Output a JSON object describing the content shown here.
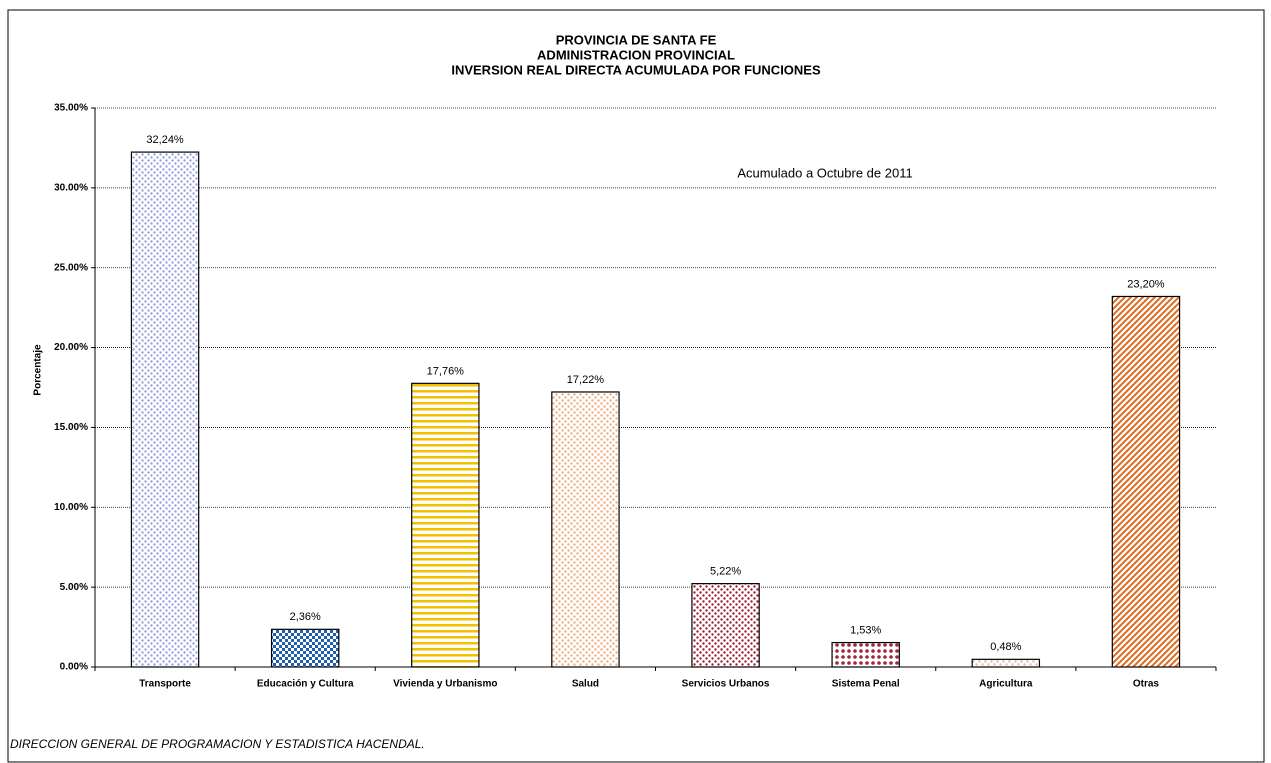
{
  "chart_data": {
    "type": "bar",
    "title": [
      "PROVINCIA DE SANTA FE",
      "ADMINISTRACION PROVINCIAL",
      "INVERSION REAL DIRECTA ACUMULADA POR FUNCIONES"
    ],
    "y_label": "Porcentaje",
    "annotation": "Acumulado a Octubre de 2011",
    "footer": "DIRECCION GENERAL DE PROGRAMACION Y ESTADISTICA HACENDAL.",
    "categories": [
      "Transporte",
      "Educación y Cultura",
      "Vivienda y Urbanismo",
      "Salud",
      "Servicios Urbanos",
      "Sistema Penal",
      "Agricultura",
      "Otras"
    ],
    "values": [
      32.24,
      2.36,
      17.76,
      17.22,
      5.22,
      1.53,
      0.48,
      23.2
    ],
    "value_labels": [
      "32,24%",
      "2,36%",
      "17,76%",
      "17,22%",
      "5,22%",
      "1,53%",
      "0,48%",
      "23,20%"
    ],
    "colors": [
      "#9aa2de",
      "#1f5fb0",
      "#f2c200",
      "#f0ad7c",
      "#a01e30",
      "#a0283c",
      "#dcbcae",
      "#e06a1c"
    ],
    "ylim": [
      0,
      35
    ],
    "yticks": [
      {
        "value": 0,
        "label": "0.00%"
      },
      {
        "value": 5,
        "label": "5.00%"
      },
      {
        "value": 10,
        "label": "10.00%"
      },
      {
        "value": 15,
        "label": "15.00%"
      },
      {
        "value": 20,
        "label": "20.00%"
      },
      {
        "value": 25,
        "label": "25.00%"
      },
      {
        "value": 30,
        "label": "30.00%"
      },
      {
        "value": 35,
        "label": "35.00%"
      }
    ],
    "grid": true
  }
}
